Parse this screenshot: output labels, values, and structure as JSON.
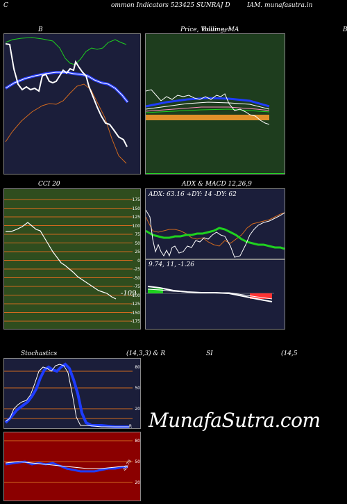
{
  "header": {
    "left": "C",
    "mid1": "ommon  Indicators 523425 SUNRAJ D",
    "mid2": "IAM. munafasutra.in"
  },
  "titles": {
    "bollinger": "B",
    "price": "Price,  Volume,  MA",
    "price_overlap": "Bollinger",
    "right_edge": "B",
    "cci": "CCI 20",
    "adx": "ADX  & MACD 12,26,9",
    "stoch": "Stochastics",
    "stoch_params": "(14,3,3) & R",
    "rsi": "SI",
    "rsi_params": "(14,5"
  },
  "adx_values": "ADX: 63.16  +DY: 14  -DY: 62",
  "macd_values": "9.74,  11,  -1.26",
  "cci_value": "-109",
  "cci_ticks": [
    "175",
    "150",
    "125",
    "100",
    "75",
    "50",
    "25",
    "0",
    "-25",
    "-50",
    "-75",
    "-100",
    "-125",
    "-150",
    "-175"
  ],
  "stoch_ticks": [
    "80",
    "50",
    "20"
  ],
  "rsi_ticks": [
    "80",
    "50",
    "20"
  ],
  "rsi_small": "48.70",
  "stoch_small": "R",
  "watermark": "MunafaSutra.com",
  "colors": {
    "navy": "#1b1e3a",
    "green_panel": "#1e3d1e",
    "cci_bg": "#2f4d1e",
    "rsi_bg": "#8b0000",
    "orange": "#d2691e",
    "blue": "#1e3cff",
    "green_line": "#1fd11f"
  }
}
